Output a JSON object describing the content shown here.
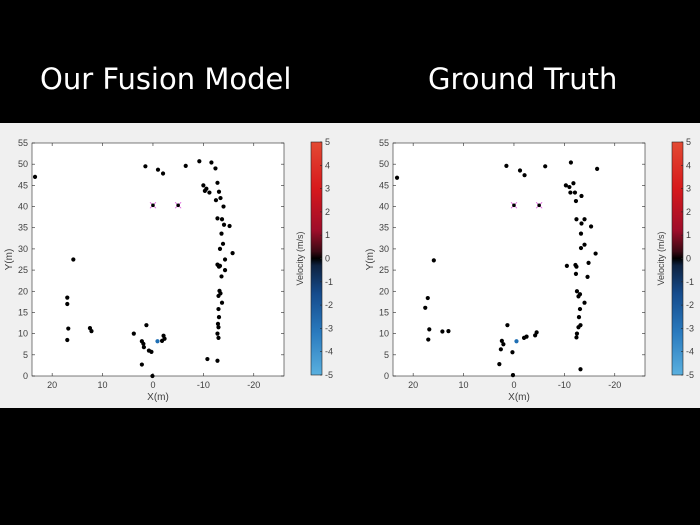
{
  "titles": {
    "left": "Our Fusion Model",
    "right": "Ground Truth"
  },
  "chart_data": [
    {
      "type": "scatter",
      "title": "Our Fusion Model",
      "xlabel": "X(m)",
      "ylabel": "Y(m)",
      "xlim": [
        24,
        -26
      ],
      "ylim": [
        0,
        55
      ],
      "xticks": [
        "20",
        "10",
        "0",
        "-10",
        "-20"
      ],
      "xtick_values": [
        20,
        10,
        0,
        -10,
        -20
      ],
      "yticks": [
        "0",
        "5",
        "10",
        "15",
        "20",
        "25",
        "30",
        "35",
        "40",
        "45",
        "50",
        "55"
      ],
      "ytick_values": [
        0,
        5,
        10,
        15,
        20,
        25,
        30,
        35,
        40,
        45,
        50,
        55
      ],
      "colorbar": {
        "label": "Velocity (m/s)",
        "min": -5,
        "max": 5,
        "ticks": [
          "5",
          "4",
          "3",
          "2",
          "1",
          "0",
          "-1",
          "-2",
          "-3",
          "-4",
          "-5"
        ],
        "tick_values": [
          5,
          4,
          3,
          2,
          1,
          0,
          -1,
          -2,
          -3,
          -4,
          -5
        ]
      },
      "points": [
        [
          23.4,
          47
        ],
        [
          15.8,
          27.5
        ],
        [
          17,
          18.5
        ],
        [
          17,
          17
        ],
        [
          16.8,
          11.2
        ],
        [
          17,
          8.5
        ],
        [
          12.5,
          11.3
        ],
        [
          12.2,
          10.6
        ],
        [
          3.8,
          10
        ],
        [
          1.3,
          12
        ],
        [
          2.2,
          8.2
        ],
        [
          1.9,
          7.6
        ],
        [
          1.8,
          6.8
        ],
        [
          0.8,
          6
        ],
        [
          0.3,
          5.7
        ],
        [
          2.2,
          2.7
        ],
        [
          0.1,
          0
        ],
        [
          -2.1,
          9.5
        ],
        [
          -2.3,
          8.8
        ],
        [
          -1.8,
          8.3
        ],
        [
          1.5,
          49.5
        ],
        [
          -1,
          48.7
        ],
        [
          -2,
          47.8
        ],
        [
          -6.5,
          49.6
        ],
        [
          -9.2,
          50.7
        ],
        [
          -11.6,
          50.4
        ],
        [
          -12.4,
          49
        ],
        [
          -10,
          45
        ],
        [
          -10.6,
          44.2
        ],
        [
          -10.3,
          43.7
        ],
        [
          -11.2,
          43.3
        ],
        [
          -12.8,
          45.6
        ],
        [
          -13.1,
          43.5
        ],
        [
          -13.4,
          42
        ],
        [
          -12.5,
          41.5
        ],
        [
          -14,
          40
        ],
        [
          -12.8,
          37.2
        ],
        [
          -13.7,
          37
        ],
        [
          -14.1,
          35.7
        ],
        [
          -15.2,
          35.4
        ],
        [
          -13.6,
          33.6
        ],
        [
          -13.9,
          31.2
        ],
        [
          -13.3,
          30
        ],
        [
          -15.8,
          29
        ],
        [
          -14.3,
          27.5
        ],
        [
          -12.8,
          26.3
        ],
        [
          -13.1,
          25.8
        ],
        [
          -13.3,
          26
        ],
        [
          -14.3,
          25
        ],
        [
          -13.6,
          23.5
        ],
        [
          -13.2,
          20.1
        ],
        [
          -13.4,
          19.5
        ],
        [
          -13,
          18.9
        ],
        [
          -13.7,
          17.3
        ],
        [
          -13,
          15.8
        ],
        [
          -13.1,
          13.9
        ],
        [
          -12.9,
          12.3
        ],
        [
          -13,
          11.5
        ],
        [
          -12.8,
          10
        ],
        [
          -13,
          9
        ],
        [
          -10.8,
          4
        ],
        [
          -12.8,
          3.6
        ]
      ],
      "colored_points": [
        {
          "x": -0.9,
          "y": 8.2,
          "color": "#1f6fb4"
        }
      ],
      "markers_x": [
        [
          0,
          40.3
        ],
        [
          -5,
          40.3
        ]
      ]
    },
    {
      "type": "scatter",
      "title": "Ground Truth",
      "xlabel": "X(m)",
      "ylabel": "Y(m)",
      "xlim": [
        24,
        -26
      ],
      "ylim": [
        0,
        55
      ],
      "xticks": [
        "20",
        "10",
        "0",
        "-10",
        "-20"
      ],
      "xtick_values": [
        20,
        10,
        0,
        -10,
        -20
      ],
      "yticks": [
        "0",
        "5",
        "10",
        "15",
        "20",
        "25",
        "30",
        "35",
        "40",
        "45",
        "50",
        "55"
      ],
      "ytick_values": [
        0,
        5,
        10,
        15,
        20,
        25,
        30,
        35,
        40,
        45,
        50,
        55
      ],
      "colorbar": {
        "label": "Velocity (m/s)",
        "min": -5,
        "max": 5,
        "ticks": [
          "5",
          "4",
          "3",
          "2",
          "1",
          "0",
          "-1",
          "-2",
          "-3",
          "-4",
          "-5"
        ],
        "tick_values": [
          5,
          4,
          3,
          2,
          1,
          0,
          -1,
          -2,
          -3,
          -4,
          -5
        ]
      },
      "points": [
        [
          23.2,
          46.8
        ],
        [
          15.9,
          27.3
        ],
        [
          17.1,
          18.4
        ],
        [
          17.6,
          16.1
        ],
        [
          16.8,
          11
        ],
        [
          17,
          8.6
        ],
        [
          14.2,
          10.5
        ],
        [
          13,
          10.6
        ],
        [
          1.3,
          12
        ],
        [
          2.4,
          8.3
        ],
        [
          2.1,
          7.5
        ],
        [
          2.6,
          6.3
        ],
        [
          0.3,
          5.6
        ],
        [
          2.9,
          2.8
        ],
        [
          0.2,
          0.2
        ],
        [
          -2,
          9
        ],
        [
          -2.5,
          9.3
        ],
        [
          -4.2,
          9.6
        ],
        [
          -4.5,
          10.3
        ],
        [
          1.5,
          49.6
        ],
        [
          -1.2,
          48.5
        ],
        [
          -2.1,
          47.4
        ],
        [
          -6.2,
          49.5
        ],
        [
          -11.3,
          50.4
        ],
        [
          -16.5,
          48.9
        ],
        [
          -10.3,
          45
        ],
        [
          -11,
          44.6
        ],
        [
          -11.8,
          45.5
        ],
        [
          -11.2,
          43.3
        ],
        [
          -12.1,
          43.3
        ],
        [
          -13.4,
          42.5
        ],
        [
          -12.3,
          41.3
        ],
        [
          -12.4,
          37
        ],
        [
          -14,
          37
        ],
        [
          -13.4,
          36
        ],
        [
          -15.3,
          35.3
        ],
        [
          -13.3,
          33.6
        ],
        [
          -14,
          31
        ],
        [
          -13.3,
          30.2
        ],
        [
          -16.2,
          28.9
        ],
        [
          -10.5,
          26
        ],
        [
          -12.2,
          26.2
        ],
        [
          -12.4,
          25.8
        ],
        [
          -14.8,
          26.7
        ],
        [
          -12.3,
          24.1
        ],
        [
          -14.6,
          23.4
        ],
        [
          -12.5,
          20
        ],
        [
          -13.1,
          19.3
        ],
        [
          -12.8,
          18.8
        ],
        [
          -14,
          17.3
        ],
        [
          -13.1,
          15.8
        ],
        [
          -12.9,
          13.9
        ],
        [
          -13.2,
          12
        ],
        [
          -12.8,
          11.5
        ],
        [
          -12.4,
          9.1
        ],
        [
          -13.2,
          1.6
        ],
        [
          -12.5,
          10
        ]
      ],
      "colored_points": [
        {
          "x": -0.5,
          "y": 8.2,
          "color": "#1f6fb4"
        }
      ],
      "markers_x": [
        [
          0,
          40.3
        ],
        [
          -5,
          40.3
        ]
      ]
    }
  ]
}
